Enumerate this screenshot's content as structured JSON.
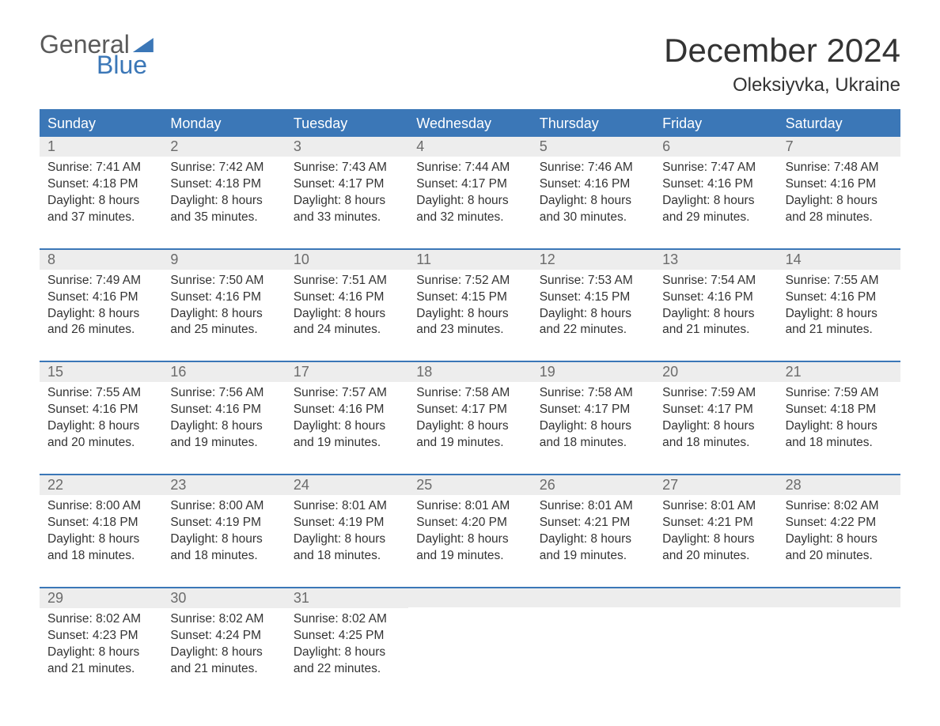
{
  "logo": {
    "top": "General",
    "bottom": "Blue"
  },
  "header": {
    "title": "December 2024",
    "location": "Oleksiyvka, Ukraine"
  },
  "colors": {
    "accent": "#3b77b7",
    "row_bg": "#ededed",
    "text": "#333333",
    "muted": "#6b6b6b",
    "background": "#ffffff"
  },
  "typography": {
    "title_fontsize": 42,
    "location_fontsize": 24,
    "dow_fontsize": 18,
    "daynum_fontsize": 18,
    "body_fontsize": 15.5
  },
  "calendar": {
    "type": "table",
    "columns": [
      "Sunday",
      "Monday",
      "Tuesday",
      "Wednesday",
      "Thursday",
      "Friday",
      "Saturday"
    ],
    "weeks": [
      [
        {
          "d": "1",
          "sr": "Sunrise: 7:41 AM",
          "ss": "Sunset: 4:18 PM",
          "dl1": "Daylight: 8 hours",
          "dl2": "and 37 minutes."
        },
        {
          "d": "2",
          "sr": "Sunrise: 7:42 AM",
          "ss": "Sunset: 4:18 PM",
          "dl1": "Daylight: 8 hours",
          "dl2": "and 35 minutes."
        },
        {
          "d": "3",
          "sr": "Sunrise: 7:43 AM",
          "ss": "Sunset: 4:17 PM",
          "dl1": "Daylight: 8 hours",
          "dl2": "and 33 minutes."
        },
        {
          "d": "4",
          "sr": "Sunrise: 7:44 AM",
          "ss": "Sunset: 4:17 PM",
          "dl1": "Daylight: 8 hours",
          "dl2": "and 32 minutes."
        },
        {
          "d": "5",
          "sr": "Sunrise: 7:46 AM",
          "ss": "Sunset: 4:16 PM",
          "dl1": "Daylight: 8 hours",
          "dl2": "and 30 minutes."
        },
        {
          "d": "6",
          "sr": "Sunrise: 7:47 AM",
          "ss": "Sunset: 4:16 PM",
          "dl1": "Daylight: 8 hours",
          "dl2": "and 29 minutes."
        },
        {
          "d": "7",
          "sr": "Sunrise: 7:48 AM",
          "ss": "Sunset: 4:16 PM",
          "dl1": "Daylight: 8 hours",
          "dl2": "and 28 minutes."
        }
      ],
      [
        {
          "d": "8",
          "sr": "Sunrise: 7:49 AM",
          "ss": "Sunset: 4:16 PM",
          "dl1": "Daylight: 8 hours",
          "dl2": "and 26 minutes."
        },
        {
          "d": "9",
          "sr": "Sunrise: 7:50 AM",
          "ss": "Sunset: 4:16 PM",
          "dl1": "Daylight: 8 hours",
          "dl2": "and 25 minutes."
        },
        {
          "d": "10",
          "sr": "Sunrise: 7:51 AM",
          "ss": "Sunset: 4:16 PM",
          "dl1": "Daylight: 8 hours",
          "dl2": "and 24 minutes."
        },
        {
          "d": "11",
          "sr": "Sunrise: 7:52 AM",
          "ss": "Sunset: 4:15 PM",
          "dl1": "Daylight: 8 hours",
          "dl2": "and 23 minutes."
        },
        {
          "d": "12",
          "sr": "Sunrise: 7:53 AM",
          "ss": "Sunset: 4:15 PM",
          "dl1": "Daylight: 8 hours",
          "dl2": "and 22 minutes."
        },
        {
          "d": "13",
          "sr": "Sunrise: 7:54 AM",
          "ss": "Sunset: 4:16 PM",
          "dl1": "Daylight: 8 hours",
          "dl2": "and 21 minutes."
        },
        {
          "d": "14",
          "sr": "Sunrise: 7:55 AM",
          "ss": "Sunset: 4:16 PM",
          "dl1": "Daylight: 8 hours",
          "dl2": "and 21 minutes."
        }
      ],
      [
        {
          "d": "15",
          "sr": "Sunrise: 7:55 AM",
          "ss": "Sunset: 4:16 PM",
          "dl1": "Daylight: 8 hours",
          "dl2": "and 20 minutes."
        },
        {
          "d": "16",
          "sr": "Sunrise: 7:56 AM",
          "ss": "Sunset: 4:16 PM",
          "dl1": "Daylight: 8 hours",
          "dl2": "and 19 minutes."
        },
        {
          "d": "17",
          "sr": "Sunrise: 7:57 AM",
          "ss": "Sunset: 4:16 PM",
          "dl1": "Daylight: 8 hours",
          "dl2": "and 19 minutes."
        },
        {
          "d": "18",
          "sr": "Sunrise: 7:58 AM",
          "ss": "Sunset: 4:17 PM",
          "dl1": "Daylight: 8 hours",
          "dl2": "and 19 minutes."
        },
        {
          "d": "19",
          "sr": "Sunrise: 7:58 AM",
          "ss": "Sunset: 4:17 PM",
          "dl1": "Daylight: 8 hours",
          "dl2": "and 18 minutes."
        },
        {
          "d": "20",
          "sr": "Sunrise: 7:59 AM",
          "ss": "Sunset: 4:17 PM",
          "dl1": "Daylight: 8 hours",
          "dl2": "and 18 minutes."
        },
        {
          "d": "21",
          "sr": "Sunrise: 7:59 AM",
          "ss": "Sunset: 4:18 PM",
          "dl1": "Daylight: 8 hours",
          "dl2": "and 18 minutes."
        }
      ],
      [
        {
          "d": "22",
          "sr": "Sunrise: 8:00 AM",
          "ss": "Sunset: 4:18 PM",
          "dl1": "Daylight: 8 hours",
          "dl2": "and 18 minutes."
        },
        {
          "d": "23",
          "sr": "Sunrise: 8:00 AM",
          "ss": "Sunset: 4:19 PM",
          "dl1": "Daylight: 8 hours",
          "dl2": "and 18 minutes."
        },
        {
          "d": "24",
          "sr": "Sunrise: 8:01 AM",
          "ss": "Sunset: 4:19 PM",
          "dl1": "Daylight: 8 hours",
          "dl2": "and 18 minutes."
        },
        {
          "d": "25",
          "sr": "Sunrise: 8:01 AM",
          "ss": "Sunset: 4:20 PM",
          "dl1": "Daylight: 8 hours",
          "dl2": "and 19 minutes."
        },
        {
          "d": "26",
          "sr": "Sunrise: 8:01 AM",
          "ss": "Sunset: 4:21 PM",
          "dl1": "Daylight: 8 hours",
          "dl2": "and 19 minutes."
        },
        {
          "d": "27",
          "sr": "Sunrise: 8:01 AM",
          "ss": "Sunset: 4:21 PM",
          "dl1": "Daylight: 8 hours",
          "dl2": "and 20 minutes."
        },
        {
          "d": "28",
          "sr": "Sunrise: 8:02 AM",
          "ss": "Sunset: 4:22 PM",
          "dl1": "Daylight: 8 hours",
          "dl2": "and 20 minutes."
        }
      ],
      [
        {
          "d": "29",
          "sr": "Sunrise: 8:02 AM",
          "ss": "Sunset: 4:23 PM",
          "dl1": "Daylight: 8 hours",
          "dl2": "and 21 minutes."
        },
        {
          "d": "30",
          "sr": "Sunrise: 8:02 AM",
          "ss": "Sunset: 4:24 PM",
          "dl1": "Daylight: 8 hours",
          "dl2": "and 21 minutes."
        },
        {
          "d": "31",
          "sr": "Sunrise: 8:02 AM",
          "ss": "Sunset: 4:25 PM",
          "dl1": "Daylight: 8 hours",
          "dl2": "and 22 minutes."
        },
        null,
        null,
        null,
        null
      ]
    ]
  }
}
